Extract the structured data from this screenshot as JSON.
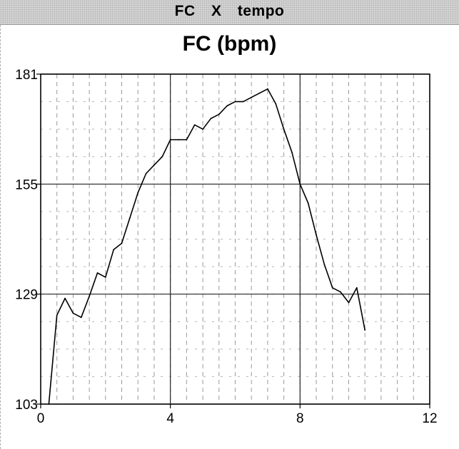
{
  "window": {
    "title_parts": [
      "FC",
      "X",
      "tempo"
    ]
  },
  "chart_data": {
    "type": "line",
    "title": "FC (bpm)",
    "xlabel": "",
    "ylabel": "",
    "xlim": [
      0,
      12
    ],
    "ylim": [
      103,
      181
    ],
    "xticks": [
      0,
      4,
      8,
      12
    ],
    "yticks": [
      103,
      129,
      155,
      181
    ],
    "grid": true,
    "line_color": "#000000",
    "series": [
      {
        "x": [
          0.25,
          0.5,
          0.75,
          1.0,
          1.25,
          1.5,
          1.75,
          2.0,
          2.25,
          2.5,
          2.75,
          3.0,
          3.25,
          3.5,
          3.75,
          4.0,
          4.25,
          4.5,
          4.75,
          5.0,
          5.25,
          5.5,
          5.75,
          6.0,
          6.25,
          6.5,
          6.75,
          7.0,
          7.25,
          7.5,
          7.75,
          8.0,
          8.25,
          8.5,
          8.75,
          9.0,
          9.25,
          9.5,
          9.75,
          10.0
        ],
        "values": [
          103,
          124,
          128,
          124.5,
          123.5,
          128.5,
          134,
          133,
          139.5,
          141,
          147,
          153,
          157.5,
          159.5,
          161.5,
          165.5,
          165.5,
          165.5,
          169,
          168,
          170.5,
          171.5,
          173.5,
          174.5,
          174.5,
          175.5,
          176.5,
          177.5,
          174,
          168,
          162.5,
          155,
          150.5,
          143,
          136,
          130.5,
          129.5,
          127,
          130.5,
          120.5
        ]
      }
    ]
  }
}
